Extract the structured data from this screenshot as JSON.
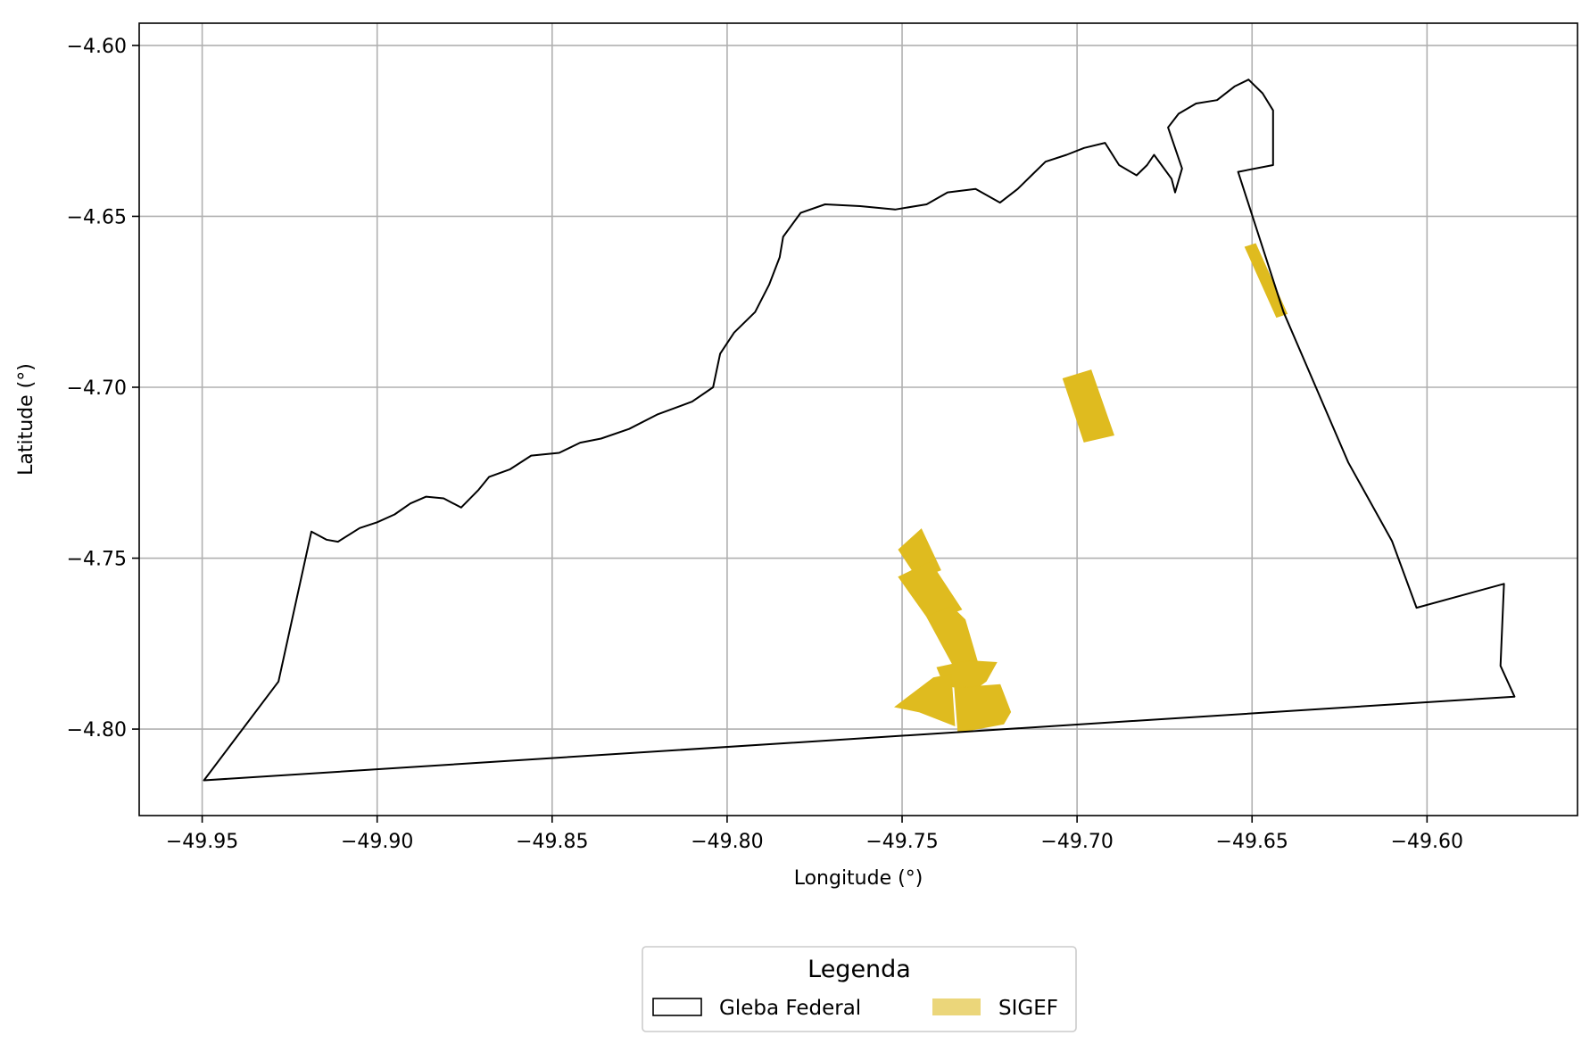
{
  "chart_data": {
    "type": "map",
    "xlabel": "Longitude (°)",
    "ylabel": "Latitude (°)",
    "xlim": [
      -49.968,
      -49.557
    ],
    "ylim": [
      -4.8253,
      -4.5935
    ],
    "xticks": [
      -49.95,
      -49.9,
      -49.85,
      -49.8,
      -49.75,
      -49.7,
      -49.65,
      -49.6
    ],
    "xtick_labels": [
      "−49.95",
      "−49.90",
      "−49.85",
      "−49.80",
      "−49.75",
      "−49.70",
      "−49.65",
      "−49.60"
    ],
    "yticks": [
      -4.6,
      -4.65,
      -4.7,
      -4.75,
      -4.8
    ],
    "ytick_labels": [
      "−4.60",
      "−4.65",
      "−4.70",
      "−4.75",
      "−4.80"
    ],
    "grid": true,
    "legend": {
      "title": "Legenda",
      "placement": "bottom-center, below axes",
      "entries": [
        "Gleba Federal",
        "SIGEF"
      ]
    },
    "colors": {
      "gleba_edge": "#000000",
      "sigef_fill": "#dfbb1f",
      "sigef_legend": "#ebd67a",
      "grid": "#b0b0b0"
    },
    "layers": [
      {
        "name": "Gleba Federal",
        "style": "outline",
        "polygons": [
          [
            [
              -49.9495,
              -4.815
            ],
            [
              -49.9282,
              -4.7861
            ],
            [
              -49.9188,
              -4.7422
            ],
            [
              -49.9145,
              -4.7446
            ],
            [
              -49.9112,
              -4.7452
            ],
            [
              -49.905,
              -4.7412
            ],
            [
              -49.9,
              -4.7395
            ],
            [
              -49.895,
              -4.7372
            ],
            [
              -49.8905,
              -4.734
            ],
            [
              -49.886,
              -4.732
            ],
            [
              -49.881,
              -4.7325
            ],
            [
              -49.876,
              -4.7352
            ],
            [
              -49.871,
              -4.73
            ],
            [
              -49.868,
              -4.7262
            ],
            [
              -49.862,
              -4.724
            ],
            [
              -49.856,
              -4.72
            ],
            [
              -49.848,
              -4.7192
            ],
            [
              -49.842,
              -4.7162
            ],
            [
              -49.836,
              -4.715
            ],
            [
              -49.828,
              -4.7122
            ],
            [
              -49.82,
              -4.708
            ],
            [
              -49.81,
              -4.7042
            ],
            [
              -49.804,
              -4.7
            ],
            [
              -49.802,
              -4.6902
            ],
            [
              -49.798,
              -4.684
            ],
            [
              -49.792,
              -4.678
            ],
            [
              -49.788,
              -4.67
            ],
            [
              -49.785,
              -4.662
            ],
            [
              -49.784,
              -4.656
            ],
            [
              -49.779,
              -4.649
            ],
            [
              -49.772,
              -4.6465
            ],
            [
              -49.762,
              -4.647
            ],
            [
              -49.752,
              -4.648
            ],
            [
              -49.743,
              -4.6465
            ],
            [
              -49.737,
              -4.643
            ],
            [
              -49.729,
              -4.642
            ],
            [
              -49.722,
              -4.646
            ],
            [
              -49.717,
              -4.642
            ],
            [
              -49.713,
              -4.638
            ],
            [
              -49.709,
              -4.634
            ],
            [
              -49.703,
              -4.632
            ],
            [
              -49.698,
              -4.63
            ],
            [
              -49.692,
              -4.6285
            ],
            [
              -49.688,
              -4.635
            ],
            [
              -49.683,
              -4.638
            ],
            [
              -49.68,
              -4.635
            ],
            [
              -49.678,
              -4.632
            ],
            [
              -49.673,
              -4.639
            ],
            [
              -49.672,
              -4.643
            ],
            [
              -49.67,
              -4.636
            ],
            [
              -49.674,
              -4.624
            ],
            [
              -49.671,
              -4.62
            ],
            [
              -49.666,
              -4.617
            ],
            [
              -49.66,
              -4.616
            ],
            [
              -49.655,
              -4.612
            ],
            [
              -49.651,
              -4.61
            ],
            [
              -49.647,
              -4.614
            ],
            [
              -49.644,
              -4.619
            ],
            [
              -49.644,
              -4.635
            ],
            [
              -49.654,
              -4.637
            ],
            [
              -49.641,
              -4.678
            ],
            [
              -49.6225,
              -4.722
            ],
            [
              -49.61,
              -4.745
            ],
            [
              -49.603,
              -4.7645
            ],
            [
              -49.578,
              -4.7575
            ],
            [
              -49.579,
              -4.7815
            ],
            [
              -49.575,
              -4.7905
            ]
          ]
        ]
      },
      {
        "name": "SIGEF",
        "style": "filled",
        "polygons": [
          [
            [
              -49.652,
              -4.659
            ],
            [
              -49.649,
              -4.658
            ],
            [
              -49.64,
              -4.6785
            ],
            [
              -49.643,
              -4.6795
            ]
          ],
          [
            [
              -49.704,
              -4.6975
            ],
            [
              -49.696,
              -4.695
            ],
            [
              -49.6895,
              -4.714
            ],
            [
              -49.698,
              -4.716
            ]
          ],
          [
            [
              -49.751,
              -4.7475
            ],
            [
              -49.7445,
              -4.7415
            ],
            [
              -49.739,
              -4.7535
            ],
            [
              -49.7455,
              -4.756
            ]
          ],
          [
            [
              -49.751,
              -4.7555
            ],
            [
              -49.742,
              -4.751
            ],
            [
              -49.733,
              -4.765
            ],
            [
              -49.737,
              -4.7665
            ],
            [
              -49.743,
              -4.767
            ]
          ],
          [
            [
              -49.743,
              -4.767
            ],
            [
              -49.736,
              -4.764
            ],
            [
              -49.732,
              -4.768
            ],
            [
              -49.728,
              -4.782
            ],
            [
              -49.734,
              -4.784
            ]
          ],
          [
            [
              -49.74,
              -4.782
            ],
            [
              -49.731,
              -4.78
            ],
            [
              -49.723,
              -4.7805
            ],
            [
              -49.726,
              -4.786
            ],
            [
              -49.73,
              -4.789
            ],
            [
              -49.738,
              -4.787
            ]
          ],
          [
            [
              -49.741,
              -4.785
            ],
            [
              -49.736,
              -4.784
            ],
            [
              -49.735,
              -4.799
            ],
            [
              -49.745,
              -4.795
            ],
            [
              -49.752,
              -4.7935
            ]
          ],
          [
            [
              -49.735,
              -4.788
            ],
            [
              -49.722,
              -4.787
            ],
            [
              -49.719,
              -4.795
            ],
            [
              -49.721,
              -4.7985
            ],
            [
              -49.734,
              -4.801
            ]
          ]
        ]
      }
    ]
  }
}
